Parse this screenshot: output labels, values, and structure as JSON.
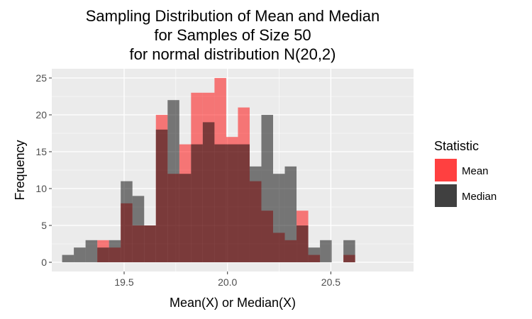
{
  "chart_data": {
    "type": "bar",
    "subtype": "overlaid-histogram",
    "title_lines": [
      "Sampling Distribution of Mean and Median",
      "for Samples of Size 50",
      "for normal distribution N(20,2)"
    ],
    "xlabel": "Mean(X) or Median(X)",
    "ylabel": "Frequency",
    "xlim": [
      19.15,
      20.9
    ],
    "ylim": [
      -1.25,
      26.25
    ],
    "x_ticks": [
      19.5,
      20.0,
      20.5
    ],
    "x_tick_labels": [
      "19.5",
      "20.0",
      "20.5"
    ],
    "y_ticks": [
      0,
      5,
      10,
      15,
      20,
      25
    ],
    "y_tick_labels": [
      "0",
      "5",
      "10",
      "15",
      "20",
      "25"
    ],
    "grid": true,
    "bin_start": 19.2,
    "bin_width": 0.0567,
    "legend": {
      "title": "Statistic",
      "placement": "right",
      "entries": [
        "Mean",
        "Median"
      ]
    },
    "series": [
      {
        "name": "Mean",
        "color": "#ff0000",
        "opacity": 0.5,
        "values": [
          0,
          0,
          0,
          3,
          2,
          8,
          5,
          5,
          20,
          12,
          16,
          23,
          23,
          25,
          17,
          21,
          11,
          7,
          4,
          3,
          7,
          1,
          0,
          0,
          1
        ]
      },
      {
        "name": "Median",
        "color": "#000000",
        "opacity": 0.5,
        "values": [
          1,
          2,
          3,
          2,
          3,
          11,
          9,
          5,
          18,
          22,
          12,
          16,
          19,
          16,
          16,
          16,
          13,
          20,
          12,
          13,
          5,
          2,
          3,
          0,
          3
        ]
      }
    ],
    "panel_background": "#ebebeb",
    "grid_color": "#ffffff"
  }
}
